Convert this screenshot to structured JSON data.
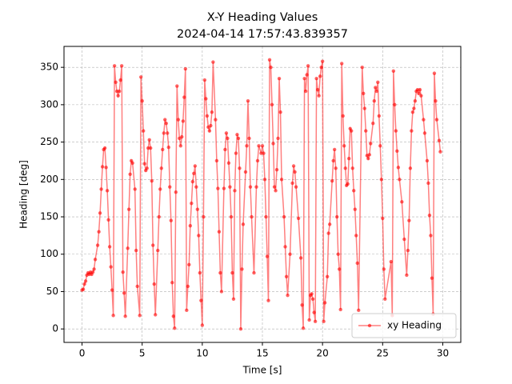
{
  "chart_data": {
    "type": "line",
    "title": "X-Y Heading Values",
    "subtitle": "2024-04-14 17:57:43.839357",
    "x_label": "Time [s]",
    "y_label": "Heading [deg]",
    "xlim": [
      -1.5,
      31.5
    ],
    "ylim": [
      -18,
      378
    ],
    "xticks": [
      0,
      5,
      10,
      15,
      20,
      25,
      30
    ],
    "yticks": [
      0,
      50,
      100,
      150,
      200,
      250,
      300,
      350
    ],
    "grid": true,
    "legend": "lower right",
    "x": [
      0.0,
      0.1,
      0.2,
      0.3,
      0.4,
      0.5,
      0.6,
      0.7,
      0.8,
      0.9,
      1.0,
      1.1,
      1.3,
      1.4,
      1.5,
      1.6,
      1.7,
      1.8,
      1.9,
      2.0,
      2.1,
      2.2,
      2.3,
      2.4,
      2.5,
      2.6,
      2.7,
      2.8,
      2.9,
      3.0,
      3.1,
      3.2,
      3.3,
      3.4,
      3.5,
      3.6,
      3.8,
      3.9,
      4.0,
      4.1,
      4.2,
      4.4,
      4.5,
      4.6,
      4.8,
      4.9,
      5.0,
      5.1,
      5.2,
      5.3,
      5.4,
      5.5,
      5.6,
      5.7,
      5.8,
      5.9,
      6.0,
      6.1,
      6.3,
      6.4,
      6.5,
      6.6,
      6.7,
      6.8,
      6.9,
      7.0,
      7.1,
      7.2,
      7.3,
      7.4,
      7.5,
      7.6,
      7.7,
      7.8,
      7.9,
      8.0,
      8.1,
      8.2,
      8.3,
      8.4,
      8.5,
      8.6,
      8.7,
      8.8,
      8.9,
      9.0,
      9.1,
      9.2,
      9.3,
      9.4,
      9.5,
      9.6,
      9.7,
      9.8,
      9.9,
      10.0,
      10.1,
      10.2,
      10.3,
      10.4,
      10.5,
      10.6,
      10.7,
      10.8,
      10.9,
      11.1,
      11.2,
      11.3,
      11.4,
      11.5,
      11.6,
      11.8,
      11.9,
      12.0,
      12.1,
      12.2,
      12.3,
      12.4,
      12.5,
      12.6,
      12.7,
      12.8,
      12.9,
      13.0,
      13.1,
      13.2,
      13.3,
      13.4,
      13.6,
      13.7,
      13.8,
      13.9,
      14.0,
      14.1,
      14.3,
      14.5,
      14.6,
      14.7,
      14.9,
      15.0,
      15.1,
      15.2,
      15.3,
      15.4,
      15.5,
      15.6,
      15.7,
      15.8,
      15.9,
      16.0,
      16.1,
      16.2,
      16.3,
      16.4,
      16.5,
      16.6,
      16.8,
      16.9,
      17.0,
      17.1,
      17.3,
      17.5,
      17.6,
      17.7,
      17.8,
      18.0,
      18.2,
      18.3,
      18.4,
      18.5,
      18.6,
      18.7,
      18.8,
      18.9,
      19.0,
      19.1,
      19.2,
      19.3,
      19.4,
      19.5,
      19.6,
      19.7,
      19.8,
      19.9,
      20.0,
      20.1,
      20.2,
      20.4,
      20.5,
      20.6,
      20.8,
      20.9,
      21.0,
      21.1,
      21.2,
      21.3,
      21.4,
      21.5,
      21.6,
      21.7,
      21.8,
      21.9,
      22.0,
      22.1,
      22.2,
      22.3,
      22.4,
      22.5,
      22.6,
      22.7,
      22.8,
      22.9,
      23.0,
      23.3,
      23.4,
      23.5,
      23.6,
      23.7,
      23.8,
      23.9,
      24.0,
      24.2,
      24.3,
      24.4,
      24.5,
      24.6,
      24.7,
      24.8,
      24.9,
      25.0,
      25.1,
      25.2,
      25.7,
      25.8,
      25.9,
      26.0,
      26.1,
      26.2,
      26.3,
      26.4,
      26.6,
      26.8,
      27.0,
      27.1,
      27.2,
      27.3,
      27.4,
      27.5,
      27.6,
      27.7,
      27.8,
      27.9,
      28.0,
      28.1,
      28.2,
      28.4,
      28.5,
      28.7,
      28.8,
      28.9,
      29.0,
      29.1,
      29.2,
      29.3,
      29.4,
      29.5,
      29.7,
      29.8
    ],
    "series": [
      {
        "name": "xy Heading",
        "color": "#ff0000",
        "values": [
          52,
          53,
          60,
          64,
          72,
          75,
          73,
          76,
          73,
          76,
          80,
          93,
          112,
          130,
          155,
          187,
          217,
          240,
          242,
          216,
          185,
          146,
          110,
          83,
          52,
          18,
          352,
          330,
          318,
          312,
          318,
          333,
          352,
          76,
          48,
          17,
          108,
          160,
          207,
          225,
          222,
          187,
          105,
          57,
          18,
          337,
          305,
          265,
          221,
          212,
          215,
          242,
          253,
          242,
          198,
          112,
          60,
          19,
          105,
          150,
          187,
          215,
          240,
          262,
          280,
          275,
          262,
          243,
          190,
          145,
          62,
          17,
          1,
          183,
          325,
          280,
          255,
          245,
          257,
          278,
          310,
          348,
          25,
          57,
          86,
          138,
          168,
          197,
          208,
          218,
          190,
          160,
          125,
          75,
          38,
          5,
          150,
          333,
          308,
          285,
          270,
          265,
          272,
          290,
          357,
          280,
          225,
          188,
          130,
          75,
          50,
          188,
          240,
          262,
          255,
          222,
          190,
          150,
          75,
          40,
          185,
          235,
          260,
          255,
          215,
          0,
          80,
          140,
          210,
          245,
          305,
          255,
          190,
          150,
          75,
          190,
          225,
          245,
          235,
          245,
          235,
          200,
          150,
          97,
          38,
          360,
          350,
          300,
          248,
          190,
          185,
          213,
          255,
          335,
          290,
          200,
          150,
          110,
          70,
          45,
          100,
          195,
          218,
          210,
          190,
          148,
          95,
          32,
          1,
          335,
          318,
          340,
          352,
          12,
          45,
          47,
          40,
          22,
          10,
          335,
          320,
          312,
          338,
          350,
          358,
          10,
          35,
          70,
          128,
          140,
          198,
          225,
          240,
          215,
          150,
          100,
          80,
          26,
          355,
          285,
          245,
          215,
          192,
          194,
          228,
          268,
          265,
          215,
          185,
          160,
          125,
          88,
          25,
          350,
          315,
          295,
          265,
          232,
          228,
          233,
          248,
          275,
          305,
          323,
          318,
          330,
          285,
          245,
          200,
          148,
          80,
          40,
          90,
          18,
          345,
          300,
          265,
          238,
          216,
          200,
          170,
          120,
          72,
          105,
          145,
          215,
          265,
          290,
          295,
          305,
          318,
          320,
          315,
          320,
          312,
          280,
          262,
          225,
          195,
          152,
          125,
          68,
          20,
          342,
          305,
          280,
          252,
          237
        ]
      }
    ]
  }
}
